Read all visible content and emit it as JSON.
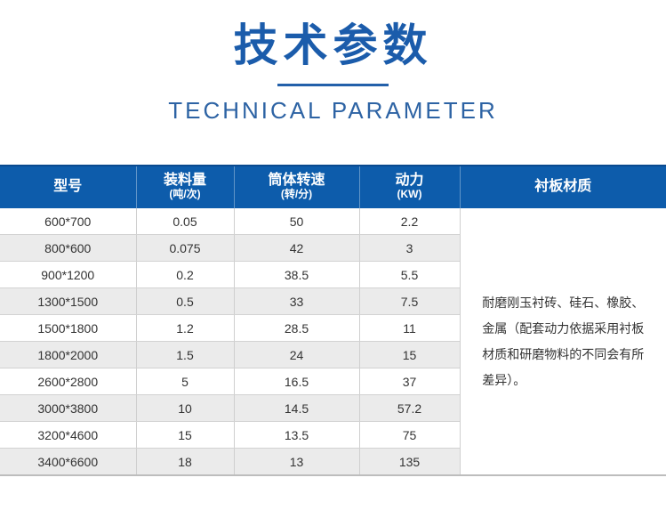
{
  "header": {
    "title_cn": "技术参数",
    "title_en": "TECHNICAL PARAMETER"
  },
  "colors": {
    "title_blue": "#1b5cab",
    "divider_blue": "#2360aa",
    "subtitle_blue": "#2d63a4",
    "table_header_bg": "#0d5cab",
    "row_alt_bg": "#ebebeb",
    "border_gray": "#cfcfcf",
    "body_text": "#333333"
  },
  "table": {
    "columns": [
      {
        "label": "型号",
        "sub": ""
      },
      {
        "label": "装料量",
        "sub": "(吨/次)"
      },
      {
        "label": "筒体转速",
        "sub": "(转/分)"
      },
      {
        "label": "动力",
        "sub": "(KW)"
      },
      {
        "label": "衬板材质",
        "sub": ""
      }
    ],
    "rows": [
      [
        "600*700",
        "0.05",
        "50",
        "2.2"
      ],
      [
        "800*600",
        "0.075",
        "42",
        "3"
      ],
      [
        "900*1200",
        "0.2",
        "38.5",
        "5.5"
      ],
      [
        "1300*1500",
        "0.5",
        "33",
        "7.5"
      ],
      [
        "1500*1800",
        "1.2",
        "28.5",
        "11"
      ],
      [
        "1800*2000",
        "1.5",
        "24",
        "15"
      ],
      [
        "2600*2800",
        "5",
        "16.5",
        "37"
      ],
      [
        "3000*3800",
        "10",
        "14.5",
        "57.2"
      ],
      [
        "3200*4600",
        "15",
        "13.5",
        "75"
      ],
      [
        "3400*6600",
        "18",
        "13",
        "135"
      ]
    ],
    "liner_material_lines": [
      "耐磨刚玉衬砖、硅石、橡胶、",
      "金属（配套动力依据采用衬板",
      "材质和研磨物料的不同会有所",
      "差异）。"
    ]
  }
}
